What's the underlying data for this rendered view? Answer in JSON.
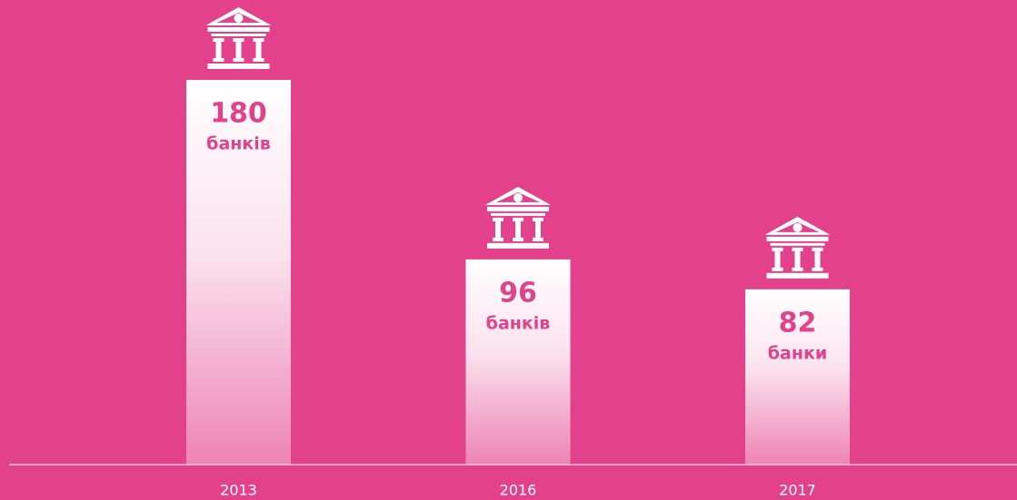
{
  "chart_data": {
    "type": "bar",
    "categories": [
      "2013",
      "2016",
      "2017"
    ],
    "values": [
      180,
      96,
      82
    ],
    "units": [
      "банків",
      "банків",
      "банки"
    ],
    "color": "#ffffff",
    "ylim": [
      0,
      180
    ]
  }
}
